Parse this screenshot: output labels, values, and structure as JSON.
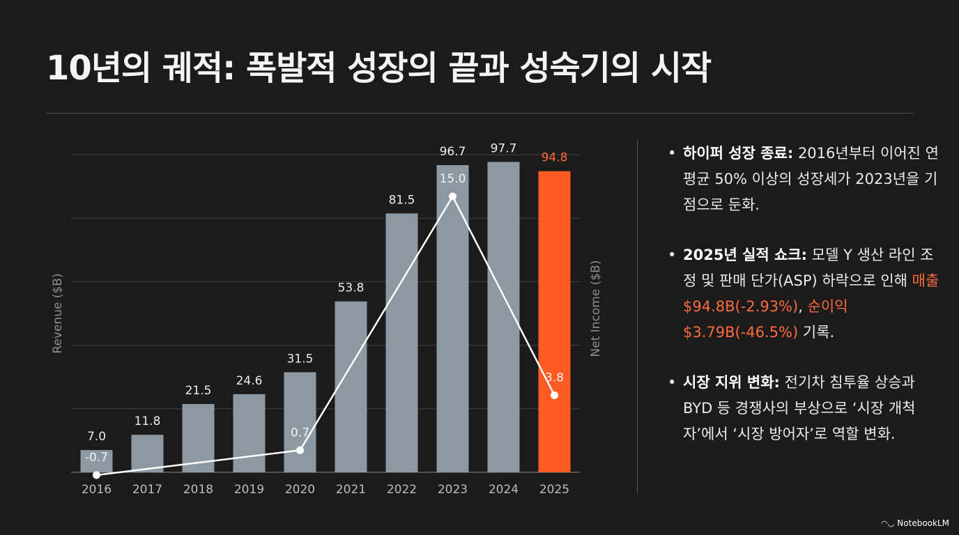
{
  "title": "10년의 궤적: 폭발적 성장의 끝과 성숙기의 시작",
  "chart_data": {
    "type": "bar+line",
    "categories": [
      "2016",
      "2017",
      "2018",
      "2019",
      "2020",
      "2021",
      "2022",
      "2023",
      "2024",
      "2025"
    ],
    "series": [
      {
        "name": "Revenue",
        "axis": "left",
        "type": "bar",
        "values": [
          7.0,
          11.8,
          21.5,
          24.6,
          31.5,
          53.8,
          81.5,
          96.7,
          97.7,
          94.8
        ],
        "labels": [
          "7.0",
          "11.8",
          "21.5",
          "24.6",
          "31.5",
          "53.8",
          "81.5",
          "96.7",
          "97.7",
          "94.8"
        ],
        "color": "#8c99a3",
        "highlight_index": 9,
        "highlight_color": "#ff5a22"
      },
      {
        "name": "Net Income",
        "axis": "right",
        "type": "line",
        "values": [
          -0.7,
          null,
          null,
          null,
          0.7,
          null,
          null,
          15.0,
          null,
          3.8
        ],
        "labels": [
          "-0.7",
          null,
          null,
          null,
          "0.7",
          null,
          null,
          "15.0",
          null,
          "3.8"
        ],
        "color": "#ffffff"
      }
    ],
    "ylabel": "Revenue ($B)",
    "y2label": "Net Income ($B)",
    "ylim": [
      0,
      100
    ],
    "grid": true
  },
  "bullets": [
    {
      "heading": "하이퍼 성장 종료:",
      "parts": [
        {
          "text": " 2016년부터 이어진 연평균 50% 이상의 성장세가 2023년을 기점으로 둔화.",
          "highlight": false
        }
      ]
    },
    {
      "heading": "2025년 실적 쇼크:",
      "parts": [
        {
          "text": " 모델 Y 생산 라인 조정 및 판매 단가(ASP) 하락으로 인해 ",
          "highlight": false
        },
        {
          "text": "매출 $94.8B(-2.93%)",
          "highlight": true
        },
        {
          "text": ", ",
          "highlight": false
        },
        {
          "text": "순이익 $3.79B(-46.5%)",
          "highlight": true
        },
        {
          "text": " 기록.",
          "highlight": false
        }
      ]
    },
    {
      "heading": "시장 지위 변화:",
      "parts": [
        {
          "text": " 전기차 침투율 상승과 BYD 등 경쟁사의 부상으로 ‘시장 개척자’에서 ‘시장 방어자’로 역할 변화.",
          "highlight": false
        }
      ]
    }
  ],
  "bullet_marker": "•",
  "brand": {
    "icon": "notebooklm-icon",
    "symbol": "◠◡",
    "text": "NotebookLM"
  }
}
